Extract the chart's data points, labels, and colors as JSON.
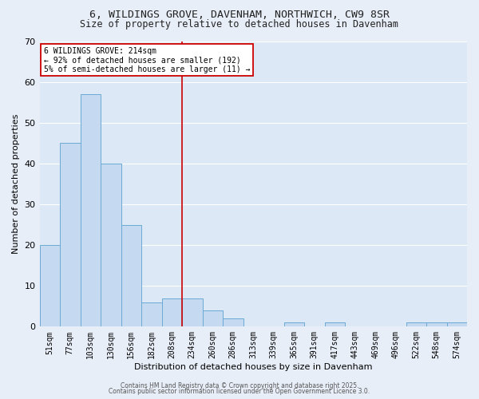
{
  "title_line1": "6, WILDINGS GROVE, DAVENHAM, NORTHWICH, CW9 8SR",
  "title_line2": "Size of property relative to detached houses in Davenham",
  "xlabel": "Distribution of detached houses by size in Davenham",
  "ylabel": "Number of detached properties",
  "categories": [
    "51sqm",
    "77sqm",
    "103sqm",
    "130sqm",
    "156sqm",
    "182sqm",
    "208sqm",
    "234sqm",
    "260sqm",
    "286sqm",
    "313sqm",
    "339sqm",
    "365sqm",
    "391sqm",
    "417sqm",
    "443sqm",
    "469sqm",
    "496sqm",
    "522sqm",
    "548sqm",
    "574sqm"
  ],
  "values": [
    20,
    45,
    57,
    40,
    25,
    6,
    7,
    7,
    4,
    2,
    0,
    0,
    1,
    0,
    1,
    0,
    0,
    0,
    1,
    1,
    1
  ],
  "bar_color": "#c5d9f0",
  "bar_edge_color": "#6aaad4",
  "vline_x_index": 6.5,
  "vline_color": "#cc0000",
  "annotation_text": "6 WILDINGS GROVE: 214sqm\n← 92% of detached houses are smaller (192)\n5% of semi-detached houses are larger (11) →",
  "annotation_box_color": "#ffffff",
  "annotation_box_edge": "#cc0000",
  "ylim": [
    0,
    70
  ],
  "yticks": [
    0,
    10,
    20,
    30,
    40,
    50,
    60,
    70
  ],
  "fig_bg_color": "#e8eef8",
  "axes_bg_color": "#dce8f5",
  "grid_color": "#ffffff",
  "footer_line1": "Contains HM Land Registry data © Crown copyright and database right 2025.",
  "footer_line2": "Contains public sector information licensed under the Open Government Licence 3.0."
}
